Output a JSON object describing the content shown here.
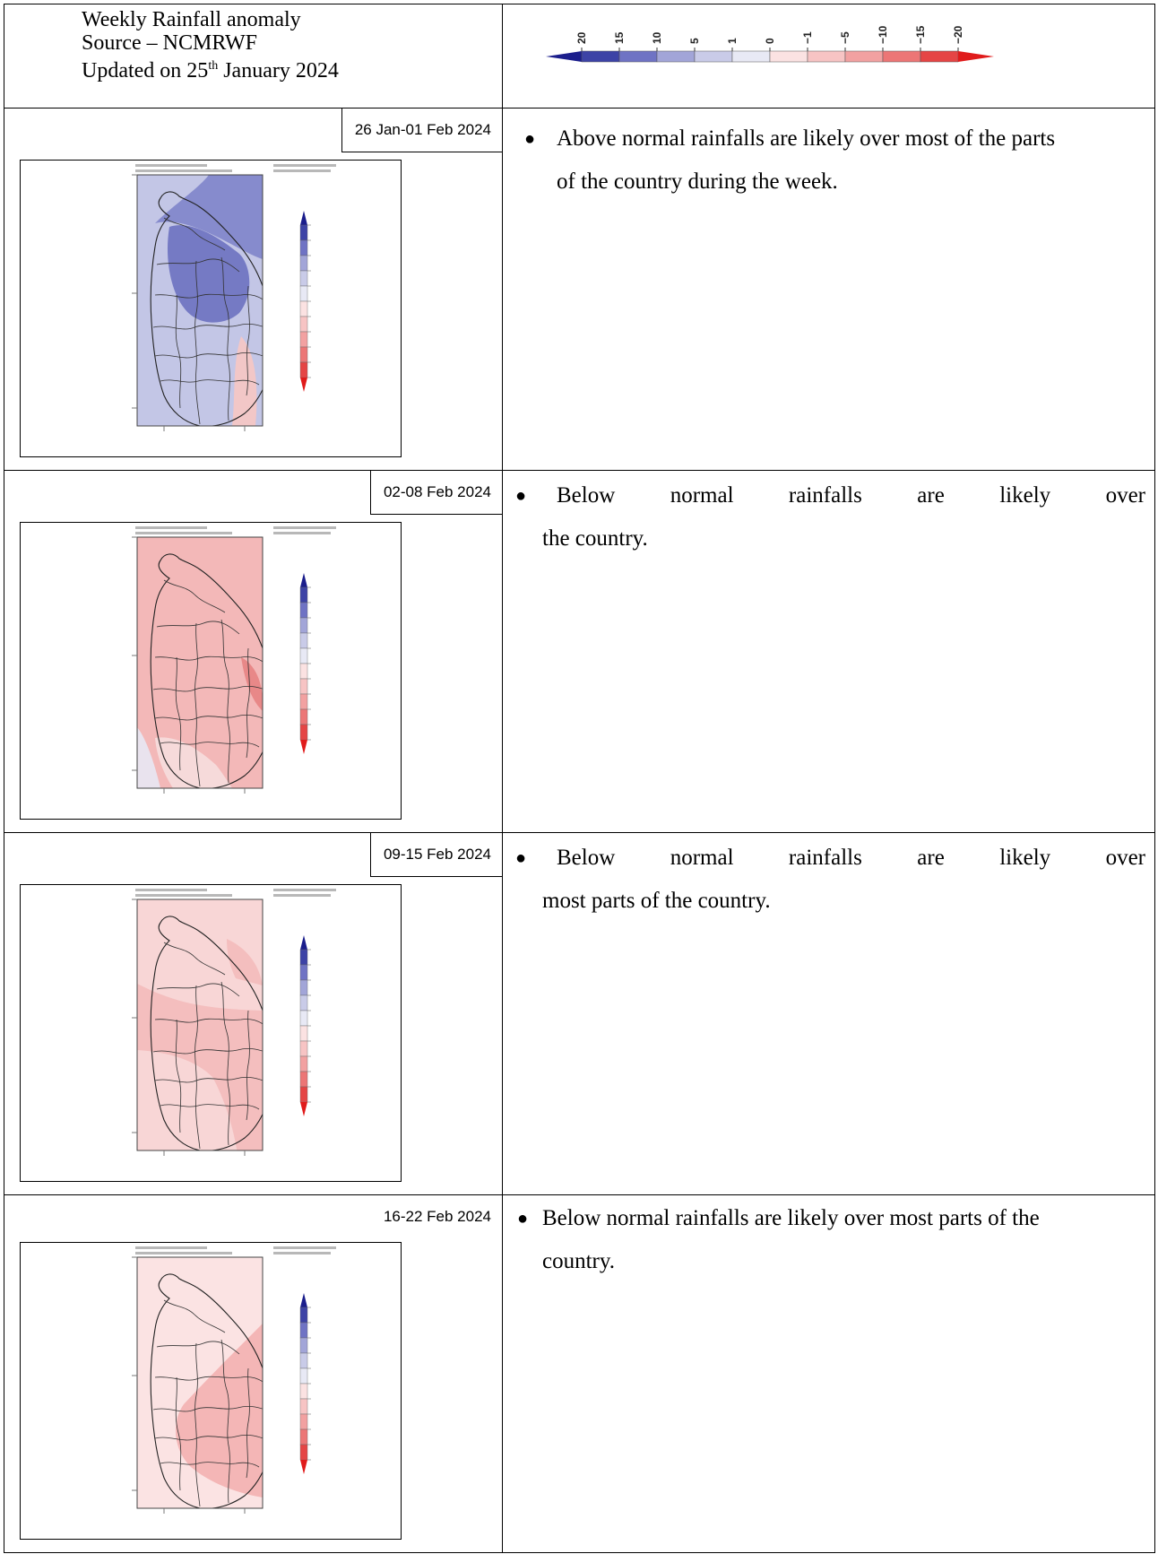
{
  "header": {
    "title": "Weekly Rainfall anomaly",
    "source": "Source – NCMRWF",
    "updated_prefix": "Updated on 25",
    "updated_sup": "th",
    "updated_suffix": " January 2024"
  },
  "legend": {
    "ticks": [
      "20",
      "15",
      "10",
      "5",
      "1",
      "0",
      "−1",
      "−5",
      "−10",
      "−15",
      "−20"
    ],
    "colors": {
      "wet_tip": "#1b1e8c",
      "wet_dark": "#3d43a6",
      "wet_mid": "#6f73c4",
      "wet_light": "#a2a5d8",
      "wet_pale": "#c9cbe8",
      "neutral_wet": "#e8e9f5",
      "neutral_dry": "#fbe2e2",
      "dry_pale": "#f7c4c4",
      "dry_light": "#f2a1a1",
      "dry_mid": "#ec7676",
      "dry_dark": "#e54545",
      "dry_tip": "#e01b1b"
    }
  },
  "weeks": [
    {
      "label": "26 Jan-01 Feb 2024",
      "bullet": "●",
      "text_line1": "Above normal rainfalls are likely over most of the parts",
      "text_line2": "of the country during the week.",
      "map": {
        "scheme": "above-normal",
        "bg": "#c3c6e6",
        "region1": "#7b80c8",
        "region2": "#f2c7c7"
      }
    },
    {
      "label": "02-08 Feb 2024",
      "bullet": "●",
      "text_line1": "Below normal rainfalls are likely over",
      "text_line2": "the country.",
      "map": {
        "scheme": "below-normal",
        "bg": "#f3b8b8",
        "region1": "#e9e3ee",
        "region2": "#e88888"
      }
    },
    {
      "label": "09-15 Feb 2024",
      "bullet": "●",
      "text_line1": "Below normal rainfalls are likely over",
      "text_line2": "most parts of the country.",
      "map": {
        "scheme": "below-normal",
        "bg": "#f8d6d6",
        "region1": "#f4bebe",
        "region2": "#f4bebe"
      }
    },
    {
      "label": "16-22 Feb 2024",
      "bullet": "●",
      "text_line1": "Below normal rainfalls are likely over most parts of the",
      "text_line2": "country.",
      "map": {
        "scheme": "below-normal",
        "bg": "#fbe3e3",
        "region1": "#f4b6b6",
        "region2": "#f4b6b6"
      }
    }
  ]
}
